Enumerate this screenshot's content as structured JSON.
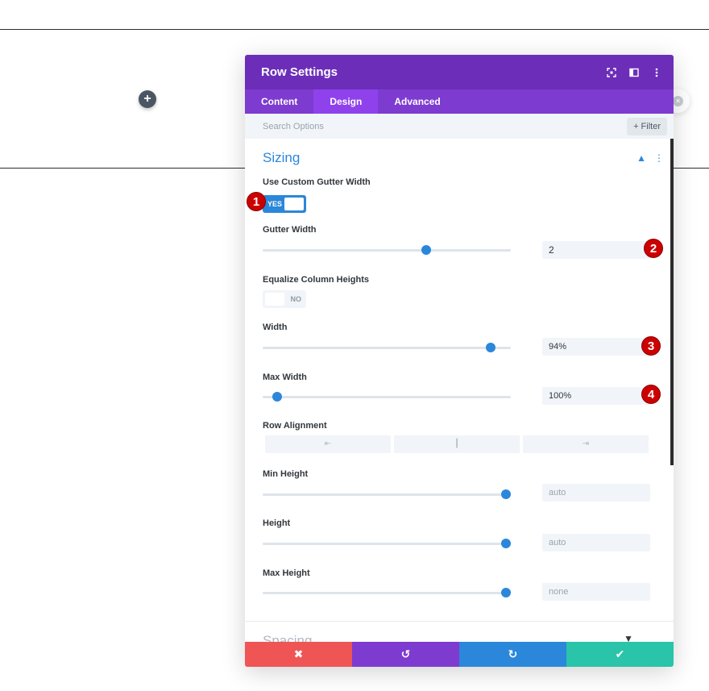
{
  "canvas": {
    "add_icon": "+",
    "close_icon": "×"
  },
  "modal": {
    "title": "Row Settings",
    "header_icons": [
      "fullscreen-icon",
      "split-view-icon",
      "more-options-icon"
    ],
    "tabs": [
      {
        "label": "Content",
        "active": false
      },
      {
        "label": "Design",
        "active": true
      },
      {
        "label": "Advanced",
        "active": false
      }
    ],
    "search": {
      "placeholder": "Search Options",
      "filter_label": "+ Filter"
    },
    "section": {
      "title": "Sizing",
      "fields": {
        "custom_gutter": {
          "label": "Use Custom Gutter Width",
          "toggle": "YES",
          "on": true
        },
        "gutter_width": {
          "label": "Gutter Width",
          "value": "2",
          "slider_fraction": 0.66
        },
        "equalize": {
          "label": "Equalize Column Heights",
          "toggle": "NO",
          "on": false
        },
        "width": {
          "label": "Width",
          "value": "94%",
          "slider_fraction": 0.92
        },
        "max_width": {
          "label": "Max Width",
          "value": "100%",
          "slider_fraction": 0.06
        },
        "row_alignment": {
          "label": "Row Alignment",
          "options": [
            "⇤",
            "┃",
            "⇥"
          ]
        },
        "min_height": {
          "label": "Min Height",
          "value": "auto",
          "slider_fraction": 0.98
        },
        "height": {
          "label": "Height",
          "value": "auto",
          "slider_fraction": 0.98
        },
        "max_height": {
          "label": "Max Height",
          "value": "none",
          "slider_fraction": 0.98
        }
      }
    },
    "next_section": {
      "title": "Spacing"
    },
    "footer": {
      "cancel": "✖",
      "undo": "↺",
      "redo": "↻",
      "save": "✔"
    }
  },
  "annotations": [
    "1",
    "2",
    "3",
    "4"
  ],
  "colors": {
    "header": "#6c2eb9",
    "tabs": "#7e3bd0",
    "accent": "#2b87da",
    "cancel": "#ef5555",
    "save": "#29c4a9",
    "badge": "#cc0000"
  }
}
